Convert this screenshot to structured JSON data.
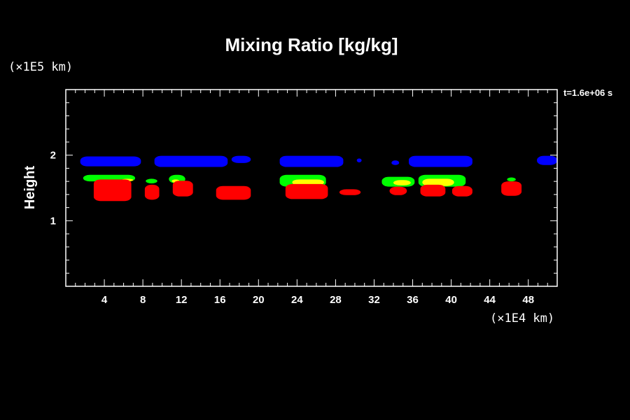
{
  "chart_data": {
    "type": "heatmap",
    "title": "Mixing Ratio [kg/kg]",
    "ylabel": "Height",
    "y_unit": "(×1E5 km)",
    "x_unit": "(×1E4 km)",
    "time_label": "t=1.6e+06 s",
    "xlim": [
      0,
      51
    ],
    "ylim": [
      0,
      3
    ],
    "x_ticks": [
      4,
      8,
      12,
      16,
      20,
      24,
      28,
      32,
      36,
      40,
      44,
      48
    ],
    "y_ticks": [
      1,
      2
    ],
    "grid": false,
    "colors": {
      "blue": "#0000ff",
      "green": "#00ff00",
      "yellow": "#ffff00",
      "red": "#ff0000"
    },
    "blobs": [
      {
        "color": "blue",
        "x0": 1.5,
        "x1": 7.8,
        "y0": 1.83,
        "y1": 1.98
      },
      {
        "color": "blue",
        "x0": 9.2,
        "x1": 16.8,
        "y0": 1.82,
        "y1": 1.99
      },
      {
        "color": "blue",
        "x0": 17.2,
        "x1": 19.2,
        "y0": 1.88,
        "y1": 1.99
      },
      {
        "color": "blue",
        "x0": 22.2,
        "x1": 28.8,
        "y0": 1.82,
        "y1": 1.99
      },
      {
        "color": "blue",
        "x0": 30.2,
        "x1": 30.7,
        "y0": 1.89,
        "y1": 1.95
      },
      {
        "color": "blue",
        "x0": 33.8,
        "x1": 34.6,
        "y0": 1.85,
        "y1": 1.92
      },
      {
        "color": "blue",
        "x0": 35.6,
        "x1": 42.2,
        "y0": 1.82,
        "y1": 1.99
      },
      {
        "color": "blue",
        "x0": 48.9,
        "x1": 51.0,
        "y0": 1.85,
        "y1": 1.99
      },
      {
        "color": "green",
        "x0": 1.8,
        "x1": 7.2,
        "y0": 1.6,
        "y1": 1.7
      },
      {
        "color": "green",
        "x0": 8.3,
        "x1": 9.5,
        "y0": 1.57,
        "y1": 1.64
      },
      {
        "color": "green",
        "x0": 10.7,
        "x1": 12.4,
        "y0": 1.57,
        "y1": 1.7
      },
      {
        "color": "green",
        "x0": 22.2,
        "x1": 27.0,
        "y0": 1.52,
        "y1": 1.7
      },
      {
        "color": "green",
        "x0": 32.8,
        "x1": 36.2,
        "y0": 1.52,
        "y1": 1.67
      },
      {
        "color": "green",
        "x0": 36.6,
        "x1": 41.5,
        "y0": 1.52,
        "y1": 1.7
      },
      {
        "color": "green",
        "x0": 45.8,
        "x1": 46.7,
        "y0": 1.6,
        "y1": 1.66
      },
      {
        "color": "yellow",
        "x0": 5.8,
        "x1": 7.0,
        "y0": 1.6,
        "y1": 1.64
      },
      {
        "color": "yellow",
        "x0": 11.0,
        "x1": 11.8,
        "y0": 1.58,
        "y1": 1.63
      },
      {
        "color": "yellow",
        "x0": 23.5,
        "x1": 26.8,
        "y0": 1.54,
        "y1": 1.63
      },
      {
        "color": "yellow",
        "x0": 34.0,
        "x1": 35.8,
        "y0": 1.54,
        "y1": 1.62
      },
      {
        "color": "yellow",
        "x0": 37.0,
        "x1": 40.3,
        "y0": 1.53,
        "y1": 1.64
      },
      {
        "color": "red",
        "x0": 2.9,
        "x1": 6.8,
        "y0": 1.3,
        "y1": 1.63
      },
      {
        "color": "red",
        "x0": 8.2,
        "x1": 9.7,
        "y0": 1.32,
        "y1": 1.55
      },
      {
        "color": "red",
        "x0": 11.1,
        "x1": 13.2,
        "y0": 1.37,
        "y1": 1.61
      },
      {
        "color": "red",
        "x0": 15.6,
        "x1": 19.2,
        "y0": 1.32,
        "y1": 1.53
      },
      {
        "color": "red",
        "x0": 22.8,
        "x1": 27.2,
        "y0": 1.33,
        "y1": 1.56
      },
      {
        "color": "red",
        "x0": 28.4,
        "x1": 30.6,
        "y0": 1.39,
        "y1": 1.48
      },
      {
        "color": "red",
        "x0": 33.6,
        "x1": 35.4,
        "y0": 1.39,
        "y1": 1.52
      },
      {
        "color": "red",
        "x0": 36.8,
        "x1": 39.4,
        "y0": 1.37,
        "y1": 1.55
      },
      {
        "color": "red",
        "x0": 40.1,
        "x1": 42.2,
        "y0": 1.37,
        "y1": 1.53
      },
      {
        "color": "red",
        "x0": 45.2,
        "x1": 47.3,
        "y0": 1.38,
        "y1": 1.6
      }
    ]
  }
}
